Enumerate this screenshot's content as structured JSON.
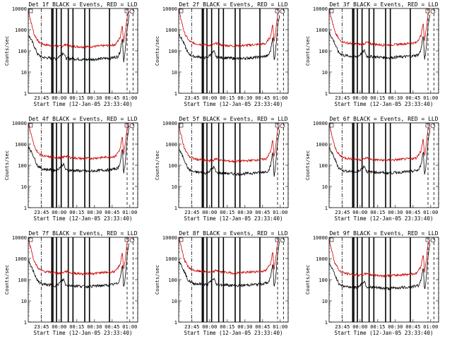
{
  "colors": {
    "events": "#000000",
    "lld": "#cc0000",
    "axis": "#000000",
    "background": "#ffffff"
  },
  "panel_defaults": {
    "ylabel": "Counts/sec",
    "xlabel": "Start Time (12-Jan-05 23:33:40)",
    "x_ticks": [
      "23:45",
      "00:00",
      "00:15",
      "00:30",
      "00:45",
      "01:00"
    ],
    "y_ticks": [
      "1",
      "10",
      "100",
      "1000",
      "10000"
    ],
    "ylim": [
      1,
      10000
    ],
    "yscale": "log",
    "xlim_minutes_from_start": [
      0,
      93
    ]
  },
  "chart_data": [
    {
      "type": "line",
      "title": "Det 1f BLACK = Events, RED = LLD",
      "series": [
        {
          "name": "Events"
        },
        {
          "name": "LLD"
        }
      ]
    },
    {
      "type": "line",
      "title": "Det 2f BLACK = Events, RED = LLD",
      "series": [
        {
          "name": "Events"
        },
        {
          "name": "LLD"
        }
      ]
    },
    {
      "type": "line",
      "title": "Det 3f BLACK = Events, RED = LLD",
      "series": [
        {
          "name": "Events"
        },
        {
          "name": "LLD"
        }
      ]
    },
    {
      "type": "line",
      "title": "Det 4f BLACK = Events, RED = LLD",
      "series": [
        {
          "name": "Events"
        },
        {
          "name": "LLD"
        }
      ]
    },
    {
      "type": "line",
      "title": "Det 5f BLACK = Events, RED = LLD",
      "series": [
        {
          "name": "Events"
        },
        {
          "name": "LLD"
        }
      ]
    },
    {
      "type": "line",
      "title": "Det 6f BLACK = Events, RED = LLD",
      "series": [
        {
          "name": "Events"
        },
        {
          "name": "LLD"
        }
      ]
    },
    {
      "type": "line",
      "title": "Det 7f BLACK = Events, RED = LLD",
      "series": [
        {
          "name": "Events"
        },
        {
          "name": "LLD"
        }
      ]
    },
    {
      "type": "line",
      "title": "Det 8f BLACK = Events, RED = LLD",
      "series": [
        {
          "name": "Events"
        },
        {
          "name": "LLD"
        }
      ]
    },
    {
      "type": "line",
      "title": "Det 9f BLACK = Events, RED = LLD",
      "series": [
        {
          "name": "Events"
        },
        {
          "name": "LLD"
        }
      ]
    }
  ],
  "curve_shape": {
    "events": [
      [
        0,
        800
      ],
      [
        4,
        300
      ],
      [
        8,
        90
      ],
      [
        12,
        65
      ],
      [
        18,
        60
      ],
      [
        24,
        55
      ],
      [
        30,
        110
      ],
      [
        32,
        58
      ],
      [
        40,
        55
      ],
      [
        50,
        50
      ],
      [
        60,
        55
      ],
      [
        70,
        60
      ],
      [
        76,
        70
      ],
      [
        78,
        120
      ],
      [
        80,
        600
      ],
      [
        81,
        40
      ],
      [
        82,
        80
      ],
      [
        84,
        1500
      ],
      [
        86,
        8000
      ]
    ],
    "lld": [
      [
        0,
        9000
      ],
      [
        5,
        700
      ],
      [
        9,
        300
      ],
      [
        14,
        230
      ],
      [
        20,
        210
      ],
      [
        28,
        190
      ],
      [
        32,
        240
      ],
      [
        36,
        200
      ],
      [
        46,
        180
      ],
      [
        56,
        190
      ],
      [
        66,
        210
      ],
      [
        74,
        230
      ],
      [
        78,
        500
      ],
      [
        80,
        2000
      ],
      [
        81,
        250
      ],
      [
        82,
        600
      ],
      [
        84,
        5000
      ],
      [
        86,
        9500
      ]
    ]
  },
  "vertical_markers_minutes": {
    "dash_dot": [
      11
    ],
    "solid": [
      20,
      21,
      24,
      28,
      34,
      38,
      48,
      52,
      69
    ],
    "dashed": [
      84,
      89,
      93
    ]
  }
}
